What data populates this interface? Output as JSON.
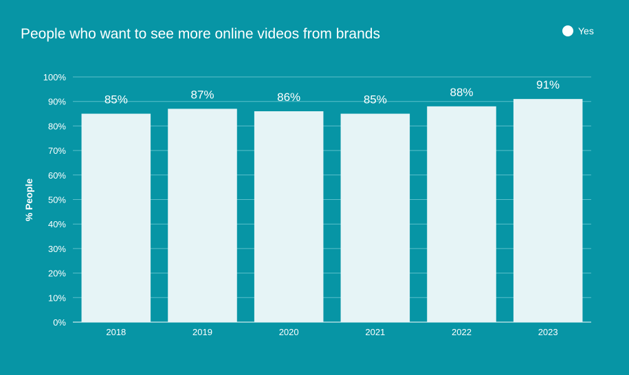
{
  "colors": {
    "background": "#0795a5",
    "bar": "#e6f4f6",
    "gridline": "#5cc0cb",
    "text": "#ffffff"
  },
  "chart_data": {
    "type": "bar",
    "title": "People who want to see more online videos from brands",
    "xlabel": "",
    "ylabel": "% People",
    "categories": [
      "2018",
      "2019",
      "2020",
      "2021",
      "2022",
      "2023"
    ],
    "series": [
      {
        "name": "Yes",
        "values": [
          85,
          87,
          86,
          85,
          88,
          91
        ]
      }
    ],
    "data_labels": [
      "85%",
      "87%",
      "86%",
      "85%",
      "88%",
      "91%"
    ],
    "ylim": [
      0,
      100
    ],
    "yticks": [
      0,
      10,
      20,
      30,
      40,
      50,
      60,
      70,
      80,
      90,
      100
    ],
    "ytick_labels": [
      "0%",
      "10%",
      "20%",
      "30%",
      "40%",
      "50%",
      "60%",
      "70%",
      "80%",
      "90%",
      "100%"
    ],
    "grid": true,
    "legend_position": "top-right"
  }
}
